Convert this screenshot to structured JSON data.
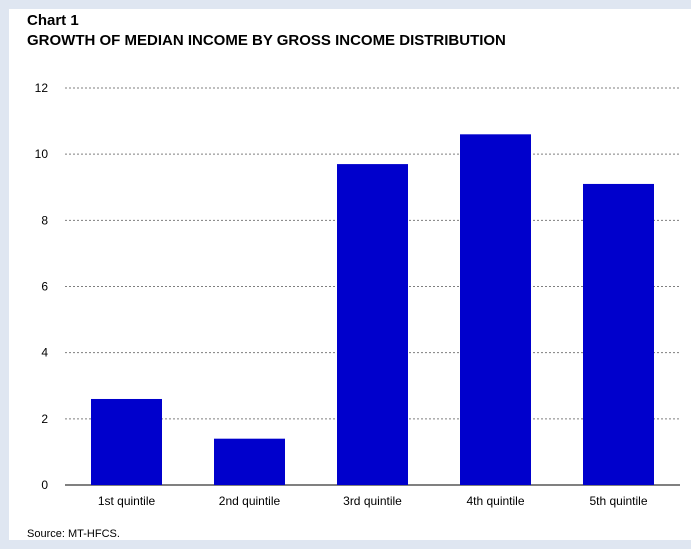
{
  "chart_label": "Chart 1",
  "chart_title": "GROWTH OF MEDIAN INCOME BY GROSS INCOME DISTRIBUTION",
  "source": "Source: MT-HFCS.",
  "colors": {
    "bar": "#0000cc",
    "panel_border": "#dfe6f1",
    "grid": "#7f7f7f"
  },
  "chart_data": {
    "type": "bar",
    "title": "GROWTH OF MEDIAN INCOME BY GROSS INCOME DISTRIBUTION",
    "xlabel": "",
    "ylabel": "",
    "categories": [
      "1st quintile",
      "2nd quintile",
      "3rd quintile",
      "4th quintile",
      "5th quintile"
    ],
    "values": [
      2.6,
      1.4,
      9.7,
      10.6,
      9.1
    ],
    "ylim": [
      0,
      12
    ],
    "yticks": [
      0,
      2,
      4,
      6,
      8,
      10,
      12
    ],
    "grid": true,
    "grid_style": "dotted horizontal",
    "legend": "none"
  }
}
